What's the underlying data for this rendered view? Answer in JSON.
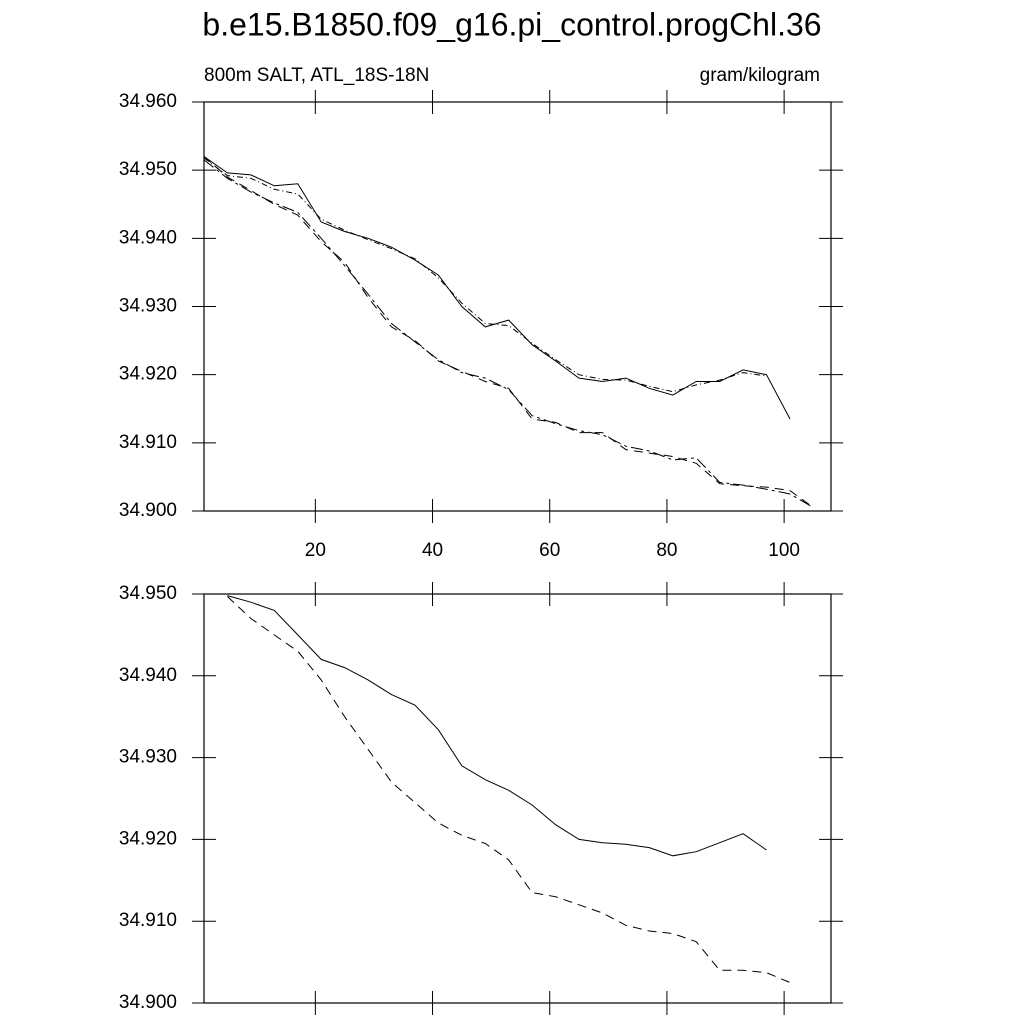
{
  "chart_data": [
    {
      "type": "line",
      "title": "b.e15.B1850.f09_g16.pi_control.progChl.36",
      "subtitle": "800m SALT, ATL_18S-18N",
      "units": "gram/kilogram",
      "x": [
        1,
        5,
        9,
        13,
        17,
        21,
        25,
        29,
        33,
        37,
        41,
        45,
        49,
        53,
        57,
        61,
        65,
        69,
        73,
        77,
        81,
        85,
        89,
        93,
        97,
        101,
        105
      ],
      "xlim": [
        1,
        108
      ],
      "xticks": [
        20,
        40,
        60,
        80,
        100
      ],
      "ylim": [
        34.9,
        34.96
      ],
      "yticks": [
        {
          "value": 34.9,
          "label": "34.900"
        },
        {
          "value": 34.91,
          "label": "34.910"
        },
        {
          "value": 34.92,
          "label": "34.920"
        },
        {
          "value": 34.93,
          "label": "34.930"
        },
        {
          "value": 34.94,
          "label": "34.940"
        },
        {
          "value": 34.95,
          "label": "34.950"
        },
        {
          "value": 34.96,
          "label": "34.960"
        }
      ],
      "series": [
        {
          "color": "#000000",
          "line_style": "solid",
          "values": [
            34.952,
            34.9496,
            34.9493,
            34.9477,
            34.948,
            34.9424,
            34.941,
            34.94,
            34.9387,
            34.9368,
            34.9346,
            34.93,
            34.927,
            34.928,
            34.9244,
            34.922,
            34.9195,
            34.919,
            34.9195,
            34.918,
            34.917,
            34.919,
            34.919,
            34.9207,
            34.92,
            34.9135,
            null
          ]
        },
        {
          "color": "#000000",
          "line_style": "dotdash",
          "values": [
            34.9518,
            34.9492,
            34.9488,
            34.9472,
            34.9465,
            34.9428,
            34.9412,
            34.9398,
            34.9385,
            34.937,
            34.9342,
            34.9305,
            34.9275,
            34.9272,
            34.9246,
            34.9222,
            34.92,
            34.9193,
            34.9192,
            34.9183,
            34.9175,
            34.9185,
            34.9192,
            34.9203,
            34.9198,
            null,
            null
          ]
        },
        {
          "color": "#000000",
          "line_style": "dashed",
          "values": [
            34.952,
            34.949,
            34.947,
            34.945,
            34.9434,
            34.9395,
            34.9365,
            34.9313,
            34.927,
            34.925,
            34.922,
            34.9205,
            34.919,
            34.918,
            34.9135,
            34.913,
            34.9115,
            34.9115,
            34.909,
            34.9085,
            34.908,
            34.907,
            34.904,
            34.9037,
            34.9035,
            34.903,
            34.9005
          ]
        },
        {
          "color": "#000000",
          "line_style": "dashdot",
          "values": [
            34.9515,
            34.9488,
            34.9468,
            34.9452,
            34.9438,
            34.94,
            34.936,
            34.9318,
            34.9275,
            34.9248,
            34.9222,
            34.9203,
            34.9195,
            34.9178,
            34.914,
            34.9128,
            34.9118,
            34.9112,
            34.9095,
            34.9088,
            34.9075,
            34.9078,
            34.9042,
            34.9038,
            34.9032,
            34.9025,
            34.9005
          ]
        }
      ]
    },
    {
      "type": "line",
      "x": [
        1,
        5,
        9,
        13,
        17,
        21,
        25,
        29,
        33,
        37,
        41,
        45,
        49,
        53,
        57,
        61,
        65,
        69,
        73,
        77,
        81,
        85,
        89,
        93,
        97,
        101,
        105
      ],
      "xlim": [
        1,
        108
      ],
      "xticks": [
        20,
        40,
        60,
        80,
        100
      ],
      "ylim": [
        34.9,
        34.95
      ],
      "yticks": [
        {
          "value": 34.9,
          "label": "34.900"
        },
        {
          "value": 34.91,
          "label": "34.910"
        },
        {
          "value": 34.92,
          "label": "34.920"
        },
        {
          "value": 34.93,
          "label": "34.930"
        },
        {
          "value": 34.94,
          "label": "34.940"
        },
        {
          "value": 34.95,
          "label": "34.950"
        }
      ],
      "series": [
        {
          "color": "#000000",
          "line_style": "solid",
          "values": [
            null,
            34.9498,
            34.949,
            34.948,
            34.945,
            34.942,
            34.941,
            34.9395,
            34.9377,
            34.9364,
            34.9334,
            34.929,
            34.9273,
            34.926,
            34.9242,
            34.9218,
            34.92,
            34.9196,
            34.9194,
            34.919,
            34.918,
            34.9185,
            34.9196,
            34.9207,
            34.9187,
            null,
            null
          ]
        },
        {
          "color": "#000000",
          "line_style": "dashed",
          "values": [
            null,
            34.9497,
            34.947,
            34.945,
            34.943,
            34.9395,
            34.935,
            34.931,
            34.927,
            34.9245,
            34.922,
            34.9205,
            34.9195,
            34.9175,
            34.9135,
            34.913,
            34.912,
            34.911,
            34.9095,
            34.9088,
            34.9085,
            34.9075,
            34.904,
            34.904,
            34.9037,
            34.9025,
            null
          ]
        }
      ]
    }
  ]
}
